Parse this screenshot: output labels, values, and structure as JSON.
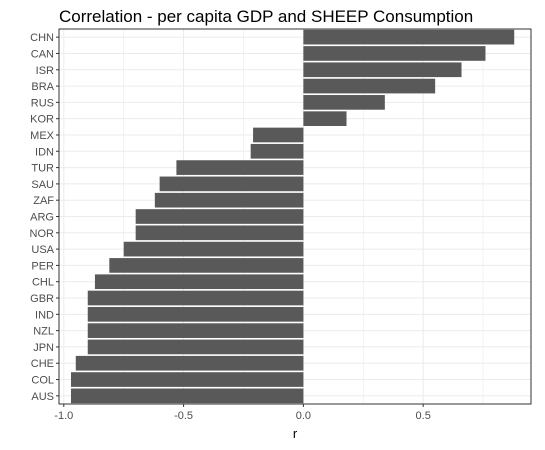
{
  "chart_data": {
    "type": "bar",
    "orientation": "horizontal",
    "title": "Correlation - per capita GDP and SHEEP Consumption",
    "xlabel": "r",
    "ylabel": "",
    "xlim": [
      -1.02,
      0.95
    ],
    "x_ticks": [
      -1.0,
      -0.5,
      0.0,
      0.5
    ],
    "x_tick_labels": [
      "-1.0",
      "-0.5",
      "0.0",
      "0.5"
    ],
    "grid": true,
    "legend": "none",
    "bar_color": "#595959",
    "panel_border_color": "#333333",
    "grid_color": "#ebebeb",
    "categories": [
      "CHN",
      "CAN",
      "ISR",
      "BRA",
      "RUS",
      "KOR",
      "MEX",
      "IDN",
      "TUR",
      "SAU",
      "ZAF",
      "ARG",
      "NOR",
      "USA",
      "PER",
      "CHL",
      "GBR",
      "IND",
      "NZL",
      "JPN",
      "CHE",
      "COL",
      "AUS"
    ],
    "values": [
      0.88,
      0.76,
      0.66,
      0.55,
      0.34,
      0.18,
      -0.21,
      -0.22,
      -0.53,
      -0.6,
      -0.62,
      -0.7,
      -0.7,
      -0.75,
      -0.81,
      -0.87,
      -0.9,
      -0.9,
      -0.9,
      -0.9,
      -0.95,
      -0.97,
      -0.97
    ]
  }
}
